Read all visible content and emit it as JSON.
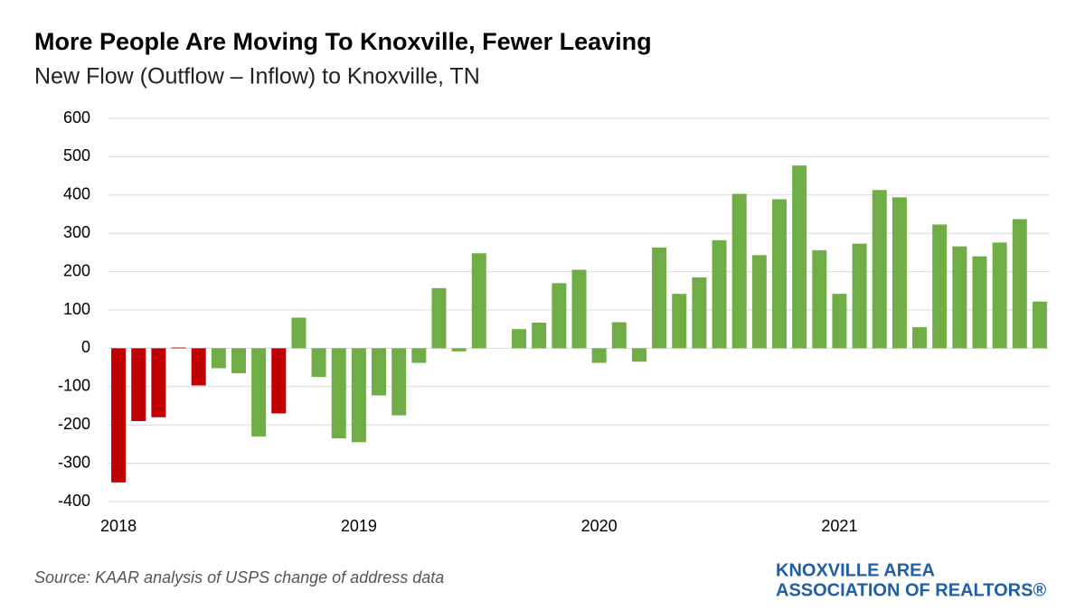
{
  "chart_data": {
    "type": "bar",
    "title": "More People Are Moving To Knoxville, Fewer Leaving",
    "subtitle": "New Flow (Outflow – Inflow) to Knoxville, TN",
    "categories": [
      "2018",
      null,
      null,
      null,
      null,
      null,
      null,
      null,
      null,
      null,
      null,
      null,
      "2019",
      null,
      null,
      null,
      null,
      null,
      null,
      null,
      null,
      null,
      null,
      null,
      "2020",
      null,
      null,
      null,
      null,
      null,
      null,
      null,
      null,
      null,
      null,
      null,
      "2021",
      null,
      null,
      null,
      null,
      null,
      null,
      null,
      null,
      null,
      null
    ],
    "values": [
      -350,
      -190,
      -180,
      2,
      -97,
      -52,
      -65,
      -230,
      -170,
      80,
      -75,
      -235,
      -245,
      -123,
      -175,
      -38,
      157,
      -8,
      248,
      null,
      50,
      67,
      170,
      205,
      -38,
      68,
      -35,
      263,
      142,
      185,
      282,
      403,
      243,
      389,
      477,
      256,
      142,
      273,
      413,
      394,
      55,
      323,
      266,
      240,
      276,
      337,
      122
    ],
    "colors": [
      "#c00000",
      "#c00000",
      "#c00000",
      "#c00000",
      "#c00000",
      "#70ad47",
      "#70ad47",
      "#70ad47",
      "#c00000",
      "#70ad47",
      "#70ad47",
      "#70ad47",
      "#70ad47",
      "#70ad47",
      "#70ad47",
      "#70ad47",
      "#70ad47",
      "#70ad47",
      "#70ad47",
      "#70ad47",
      "#70ad47",
      "#70ad47",
      "#70ad47",
      "#70ad47",
      "#70ad47",
      "#70ad47",
      "#70ad47",
      "#70ad47",
      "#70ad47",
      "#70ad47",
      "#70ad47",
      "#70ad47",
      "#70ad47",
      "#70ad47",
      "#70ad47",
      "#70ad47",
      "#70ad47",
      "#70ad47",
      "#70ad47",
      "#70ad47",
      "#70ad47",
      "#70ad47",
      "#70ad47",
      "#70ad47",
      "#70ad47",
      "#70ad47",
      "#70ad47"
    ],
    "ylim": [
      -400,
      600
    ],
    "yticks": [
      -400,
      -300,
      -200,
      -100,
      0,
      100,
      200,
      300,
      400,
      500,
      600
    ],
    "grid": true,
    "source": "Source: KAAR analysis of USPS change of address data",
    "logo": [
      "KNOXVILLE AREA",
      "ASSOCIATION OF REALTORS®"
    ]
  }
}
